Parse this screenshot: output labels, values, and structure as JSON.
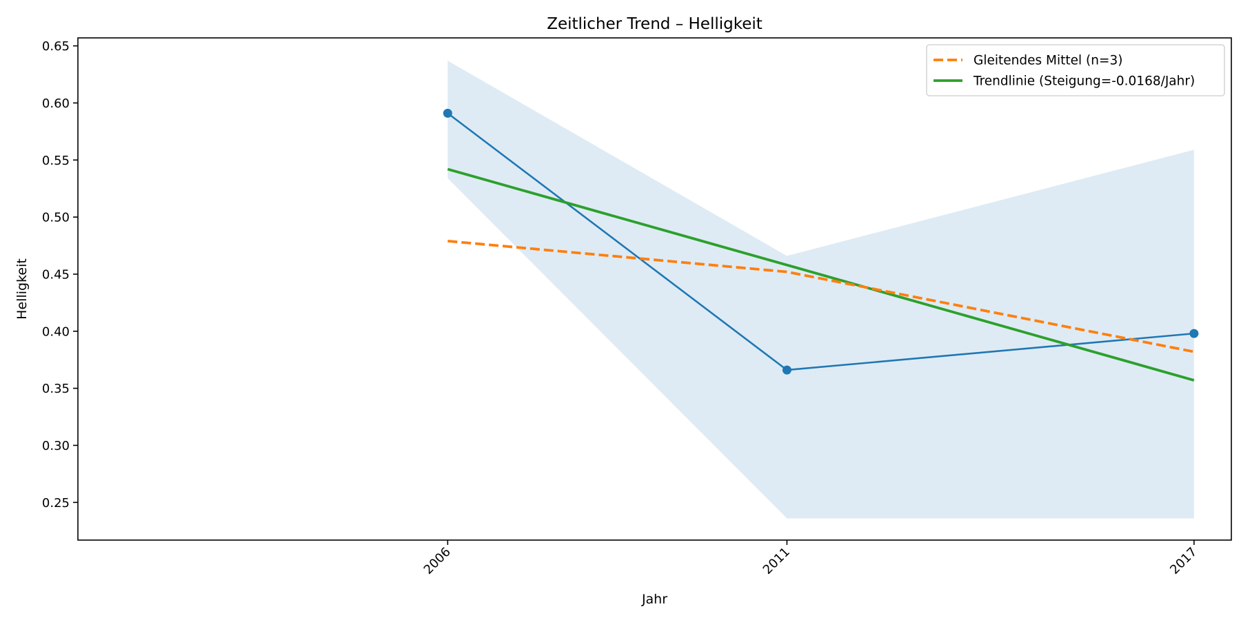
{
  "chart_data": {
    "type": "line",
    "title": "Zeitlicher Trend – Helligkeit",
    "xlabel": "Jahr",
    "ylabel": "Helligkeit",
    "x": [
      2006,
      2011,
      2017
    ],
    "x_tick_labels": [
      "2006",
      "2011",
      "2017"
    ],
    "xlim": [
      2000.55,
      2017.55
    ],
    "ylim": [
      0.217,
      0.657
    ],
    "y_ticks": [
      0.25,
      0.3,
      0.35,
      0.4,
      0.45,
      0.5,
      0.55,
      0.6,
      0.65
    ],
    "y_tick_labels": [
      "0.25",
      "0.30",
      "0.35",
      "0.40",
      "0.45",
      "0.50",
      "0.55",
      "0.60",
      "0.65"
    ],
    "grid": false,
    "legend_position": "top-right",
    "series": [
      {
        "key": "values",
        "values": [
          0.591,
          0.366,
          0.398
        ],
        "color": "#1f77b4",
        "style": "solid",
        "markers": true
      },
      {
        "key": "moving_avg",
        "name": "Gleitendes Mittel (n=3)",
        "values": [
          0.479,
          0.452,
          0.382
        ],
        "color": "#ff7f0e",
        "style": "dashed",
        "markers": false
      },
      {
        "key": "trend",
        "name": "Trendlinie (Steigung=-0.0168/Jahr)",
        "values": [
          0.542,
          0.458,
          0.357
        ],
        "color": "#2ca02c",
        "style": "solid",
        "markers": false
      }
    ],
    "band": {
      "color": "#1f77b4",
      "opacity": 0.15,
      "upper": [
        0.637,
        0.466,
        0.559
      ],
      "lower": [
        0.534,
        0.236,
        0.236
      ]
    }
  }
}
